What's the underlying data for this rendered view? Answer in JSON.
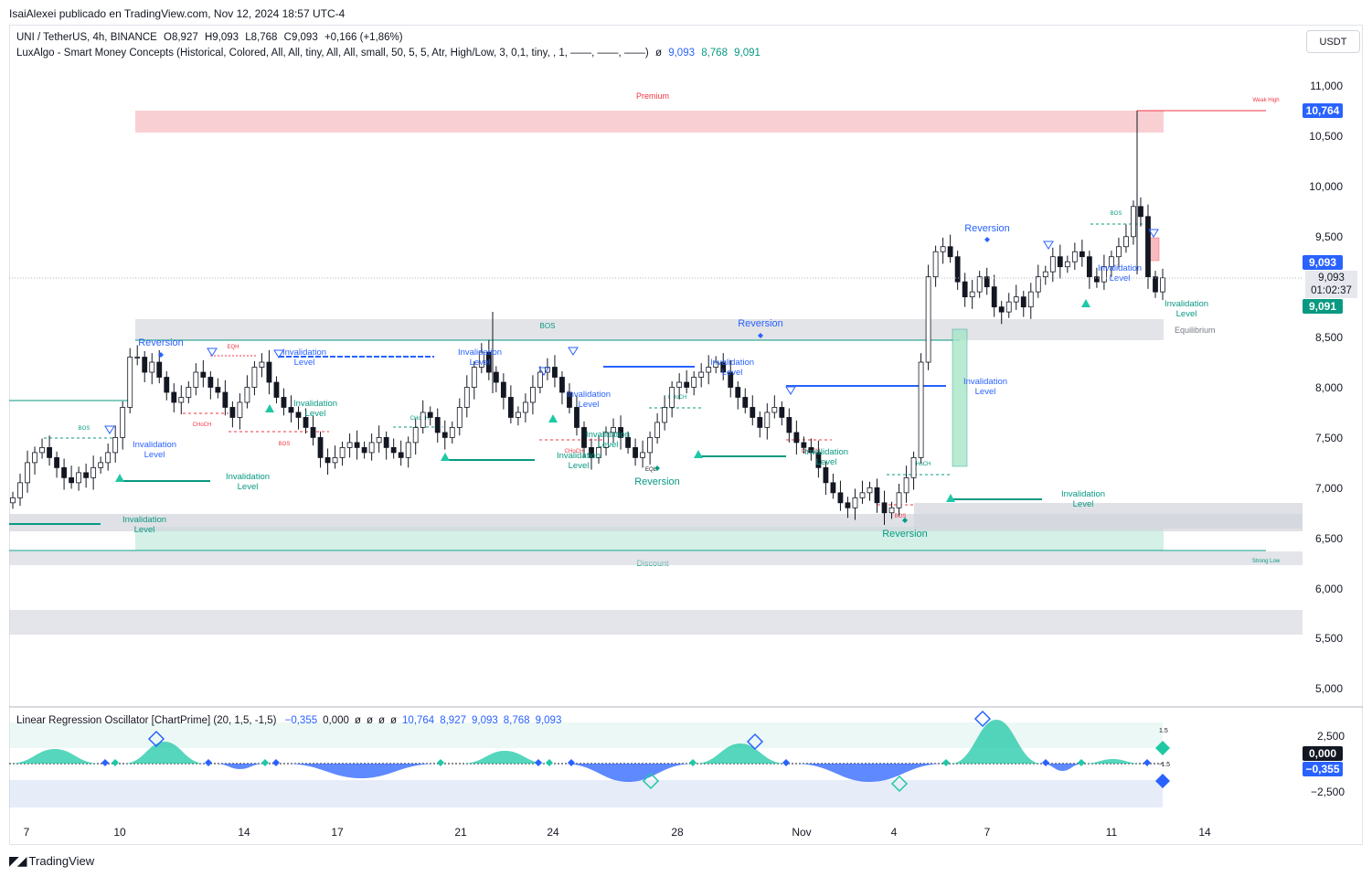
{
  "header": {
    "published_by": "IsaiAlexei publicado en TradingView.com, Nov 12, 2024 18:57 UTC-4"
  },
  "symbol_line": {
    "symbol": "UNI / TetherUS, 4h, BINANCE",
    "open": "O8,927",
    "high": "H9,093",
    "low": "L8,768",
    "close": "C9,093",
    "change": "+0,166 (+1,86%)"
  },
  "indicator_line": {
    "name": "LuxAlgo - Smart Money Concepts (Historical, Colored, All, All, tiny, All, All, small, 50, 5, 5, Atr, High/Low, 3, 0,1, tiny, , 1, ——, ——, ——)",
    "ø": "ø",
    "v1": "9,093",
    "v2": "8,768",
    "v3": "9,091"
  },
  "currency_button": "USDT",
  "price_axis": {
    "ticks": [
      "11,000",
      "10,500",
      "10,000",
      "9,500",
      "8,500",
      "8,000",
      "7,500",
      "7,000",
      "6,500",
      "6,000",
      "5,500",
      "5,000"
    ],
    "badges": {
      "high": "10,764",
      "last": "9,093",
      "close": "9,091"
    },
    "timer_price": "9,093",
    "timer": "01:02:37"
  },
  "zone_labels": {
    "premium": "Premium",
    "discount": "Discount",
    "equilibrium": "Equilibrium",
    "weak_high": "Weak High",
    "strong_low": "Strong Low"
  },
  "annotations": {
    "reversion": "Reversion",
    "invalidation_1": "Invalidation",
    "invalidation_2": "Level",
    "bos": "BOS",
    "choch": "CHoCH",
    "eqh": "EQH",
    "eql": "EQL"
  },
  "oscillator": {
    "legend": "Linear Regression Oscillator [ChartPrime] (20, 1,5, -1,5)",
    "values": [
      "−0,355",
      "0,000",
      "ø",
      "ø",
      "ø",
      "ø",
      "10,764",
      "8,927",
      "9,093",
      "8,768",
      "9,093"
    ],
    "axis": {
      "upper": "2,500",
      "lower": "−2,500",
      "zero_badge": "0,000",
      "value_badge": "−0,355",
      "band_hi": "1.5",
      "band_lo": "-1.5"
    }
  },
  "time_axis": [
    "7",
    "10",
    "14",
    "17",
    "21",
    "24",
    "28",
    "Nov",
    "4",
    "7",
    "11",
    "14"
  ],
  "footer": {
    "brand": "TradingView"
  },
  "colors": {
    "up": "#089981",
    "down": "#f23645",
    "zone_premium": "#f8d0d3",
    "zone_discount": "#c9ece1",
    "zone_gray": "#d1d4dc",
    "bullish_label": "#089981",
    "bearish_label": "#2962ff",
    "osc_up": "#1ec8a5",
    "osc_down": "#2962ff"
  },
  "chart_data": {
    "type": "candlestick",
    "timeframe": "4h",
    "symbol": "UNI / TetherUS",
    "y_range": [
      4.8,
      11.3
    ],
    "closes": [
      6.9,
      7.05,
      7.25,
      7.35,
      7.4,
      7.3,
      7.2,
      7.1,
      7.05,
      7.15,
      7.1,
      7.2,
      7.25,
      7.35,
      7.5,
      7.8,
      8.3,
      8.3,
      8.15,
      8.25,
      8.1,
      7.95,
      7.85,
      7.9,
      8.0,
      8.15,
      8.1,
      8.0,
      7.95,
      7.8,
      7.7,
      7.85,
      8.0,
      8.2,
      8.25,
      8.05,
      7.9,
      7.8,
      7.75,
      7.7,
      7.6,
      7.5,
      7.3,
      7.25,
      7.3,
      7.4,
      7.45,
      7.4,
      7.35,
      7.45,
      7.5,
      7.4,
      7.35,
      7.3,
      7.45,
      7.6,
      7.75,
      7.7,
      7.55,
      7.5,
      7.6,
      7.8,
      8.0,
      8.2,
      8.35,
      8.15,
      8.05,
      7.9,
      7.7,
      7.75,
      7.85,
      8.0,
      8.15,
      8.2,
      8.1,
      7.95,
      7.8,
      7.6,
      7.4,
      7.3,
      7.4,
      7.55,
      7.6,
      7.5,
      7.4,
      7.3,
      7.35,
      7.5,
      7.65,
      7.8,
      8.0,
      8.05,
      8.0,
      8.1,
      8.15,
      8.2,
      8.25,
      8.15,
      8.0,
      7.9,
      7.8,
      7.7,
      7.6,
      7.75,
      7.8,
      7.7,
      7.55,
      7.45,
      7.4,
      7.35,
      7.2,
      7.05,
      6.95,
      6.85,
      6.8,
      6.9,
      6.95,
      7.0,
      6.85,
      6.75,
      6.8,
      6.95,
      7.1,
      7.3,
      8.25,
      9.1,
      9.35,
      9.4,
      9.3,
      9.05,
      8.9,
      8.95,
      9.1,
      9.0,
      8.8,
      8.75,
      8.85,
      8.9,
      8.8,
      8.95,
      9.1,
      9.15,
      9.3,
      9.2,
      9.25,
      9.35,
      9.3,
      9.1,
      9.05,
      9.2,
      9.3,
      9.4,
      9.5,
      9.8,
      9.7,
      9.1,
      8.95,
      9.09
    ]
  }
}
